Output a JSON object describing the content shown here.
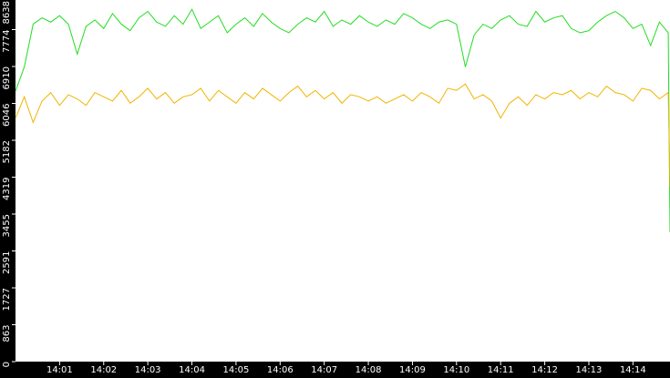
{
  "chart_data": {
    "type": "line",
    "x": [
      840,
      840.2,
      840.4,
      840.6,
      840.8,
      841,
      841.2,
      841.4,
      841.6,
      841.8,
      842,
      842.2,
      842.4,
      842.6,
      842.8,
      843,
      843.2,
      843.4,
      843.6,
      843.8,
      844,
      844.2,
      844.4,
      844.6,
      844.8,
      845,
      845.2,
      845.4,
      845.6,
      845.8,
      846,
      846.2,
      846.4,
      846.6,
      846.8,
      847,
      847.2,
      847.4,
      847.6,
      847.8,
      848,
      848.2,
      848.4,
      848.6,
      848.8,
      849,
      849.2,
      849.4,
      849.6,
      849.8,
      850,
      850.2,
      850.4,
      850.6,
      850.8,
      851,
      851.2,
      851.4,
      851.6,
      851.8,
      852,
      852.2,
      852.4,
      852.6,
      852.8,
      853,
      853.2,
      853.4,
      853.6,
      853.8,
      854,
      854.2,
      854.4,
      854.6,
      854.8,
      854.84
    ],
    "series": [
      {
        "color": "#22dd22",
        "values": [
          6330,
          6900,
          7900,
          8050,
          7950,
          8100,
          7900,
          7200,
          7850,
          8000,
          7800,
          8150,
          7900,
          7750,
          8050,
          8200,
          7950,
          7850,
          8100,
          7900,
          8250,
          7800,
          7950,
          8100,
          7700,
          7900,
          8050,
          7850,
          8150,
          7950,
          7800,
          7700,
          7900,
          8050,
          7950,
          8200,
          7850,
          8000,
          7900,
          8100,
          7950,
          7850,
          8000,
          7900,
          8150,
          8050,
          7900,
          7800,
          7950,
          8000,
          7900,
          6900,
          7650,
          7900,
          7800,
          8000,
          8100,
          7900,
          7850,
          8200,
          7950,
          8050,
          8100,
          7800,
          7700,
          7750,
          7950,
          8100,
          8200,
          8050,
          7800,
          7900,
          7400,
          7950,
          7700,
          3028
        ]
      },
      {
        "color": "#f0b400",
        "values": [
          5700,
          6200,
          5600,
          6100,
          6300,
          6000,
          6250,
          6150,
          6000,
          6300,
          6200,
          6100,
          6350,
          6050,
          6200,
          6400,
          6150,
          6300,
          6050,
          6200,
          6250,
          6400,
          6100,
          6350,
          6200,
          6050,
          6300,
          6150,
          6400,
          6250,
          6100,
          6300,
          6450,
          6200,
          6350,
          6150,
          6300,
          6050,
          6250,
          6200,
          6100,
          6200,
          6050,
          6150,
          6250,
          6100,
          6300,
          6200,
          6050,
          6400,
          6350,
          6500,
          6150,
          6250,
          6100,
          5700,
          6050,
          6200,
          6000,
          6250,
          6150,
          6300,
          6250,
          6350,
          6150,
          6300,
          6200,
          6450,
          6300,
          6250,
          6100,
          6400,
          6350,
          6150,
          6300,
          4095
        ]
      }
    ],
    "xlim": [
      840,
      854.84
    ],
    "xticks": [
      {
        "value": 841,
        "label": "14:01"
      },
      {
        "value": 842,
        "label": "14:02"
      },
      {
        "value": 843,
        "label": "14:03"
      },
      {
        "value": 844,
        "label": "14:04"
      },
      {
        "value": 845,
        "label": "14:05"
      },
      {
        "value": 846,
        "label": "14:06"
      },
      {
        "value": 847,
        "label": "14:07"
      },
      {
        "value": 848,
        "label": "14:08"
      },
      {
        "value": 849,
        "label": "14:09"
      },
      {
        "value": 850,
        "label": "14:10"
      },
      {
        "value": 851,
        "label": "14:11"
      },
      {
        "value": 852,
        "label": "14:12"
      },
      {
        "value": 853,
        "label": "14:13"
      },
      {
        "value": 854,
        "label": "14:14"
      }
    ],
    "ylim": [
      0,
      8467
    ],
    "yticks": [
      0,
      863,
      1727,
      2591,
      3455,
      4319,
      5182,
      6046,
      6910,
      7774,
      8638
    ]
  }
}
